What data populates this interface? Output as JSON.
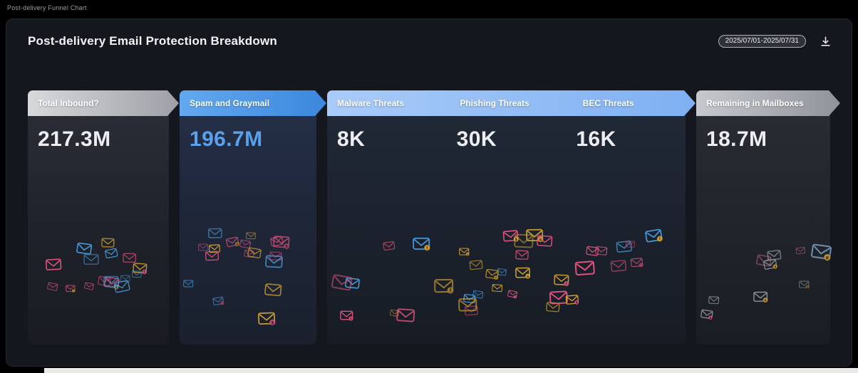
{
  "page_label": "Post-delivery Funnel Chart",
  "header": {
    "title": "Post-delivery Email Protection Breakdown",
    "date_range": "2025/07/01-2025/07/31"
  },
  "chart_data": {
    "type": "funnel",
    "title": "Post-delivery Email Protection Breakdown",
    "date_range": "2025/07/01-2025/07/31",
    "stages": [
      {
        "label": "Total Inbound?",
        "value": 217300000,
        "display_value": "217.3M",
        "segment": "inbound",
        "header_color": "gray"
      },
      {
        "label": "Spam and Graymail",
        "value": 196700000,
        "display_value": "196.7M",
        "segment": "filtered",
        "header_color": "blue"
      },
      {
        "label": "Malware Threats",
        "value": 8000,
        "display_value": "8K",
        "segment": "threats",
        "header_color": "light-blue"
      },
      {
        "label": "Phishing Threats",
        "value": 30000,
        "display_value": "30K",
        "segment": "threats",
        "header_color": "light-blue"
      },
      {
        "label": "BEC Threats",
        "value": 16000,
        "display_value": "16K",
        "segment": "threats",
        "header_color": "light-blue"
      },
      {
        "label": "Remaining in Mailboxes",
        "value": 18700000,
        "display_value": "18.7M",
        "segment": "remaining",
        "header_color": "gray"
      }
    ],
    "legend_position": "none",
    "grid": false
  },
  "icons": {
    "download": "download-icon",
    "envelope": "envelope-icon"
  },
  "colors": {
    "accent_blue": "#4f9cf0",
    "light_blue": "#86b9f5",
    "header_gray": "#aeb1b7",
    "value_blue": "#5aa0ea",
    "card_bg": "#14171d",
    "envelope_palette": {
      "blue": "#4aa3e8",
      "yellow": "#d9a733",
      "pink": "#e4557f",
      "muted_blue": "#7fa8c9",
      "muted_pink": "#c96a8a",
      "gray": "#9aa0a8"
    }
  }
}
